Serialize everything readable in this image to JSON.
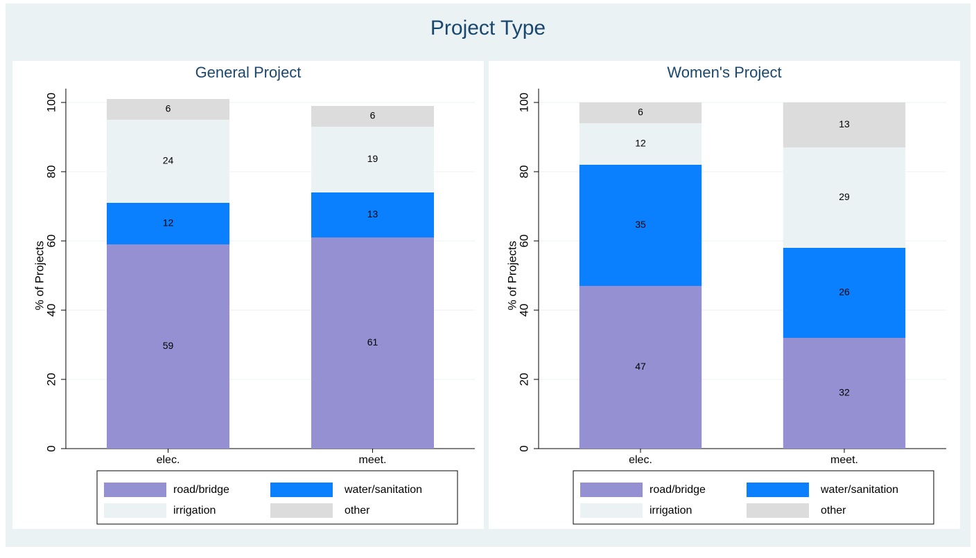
{
  "title": "Project Type",
  "chart_data": [
    {
      "type": "bar",
      "stacked": true,
      "title": "General Project",
      "y_label": "% of Projects",
      "categories": [
        "elec.",
        "meet."
      ],
      "series": [
        {
          "name": "road/bridge",
          "color": "#9590d2",
          "values": [
            59,
            61
          ]
        },
        {
          "name": "water/sanitation",
          "color": "#0a80ff",
          "values": [
            12,
            13
          ]
        },
        {
          "name": "irrigation",
          "color": "#eaf2f3",
          "values": [
            24,
            19
          ]
        },
        {
          "name": "other",
          "color": "#dcdcdc",
          "values": [
            6,
            6
          ]
        }
      ],
      "ylim": [
        0,
        104
      ],
      "yticks": [
        0,
        20,
        40,
        60,
        80,
        100
      ],
      "grid": true
    },
    {
      "type": "bar",
      "stacked": true,
      "title": "Women's Project",
      "y_label": "% of Projects",
      "categories": [
        "elec.",
        "meet."
      ],
      "series": [
        {
          "name": "road/bridge",
          "color": "#9590d2",
          "values": [
            47,
            32
          ]
        },
        {
          "name": "water/sanitation",
          "color": "#0a80ff",
          "values": [
            35,
            26
          ]
        },
        {
          "name": "irrigation",
          "color": "#eaf2f3",
          "values": [
            12,
            29
          ]
        },
        {
          "name": "other",
          "color": "#dcdcdc",
          "values": [
            6,
            13
          ]
        }
      ],
      "ylim": [
        0,
        104
      ],
      "yticks": [
        0,
        20,
        40,
        60,
        80,
        100
      ],
      "grid": true
    }
  ]
}
